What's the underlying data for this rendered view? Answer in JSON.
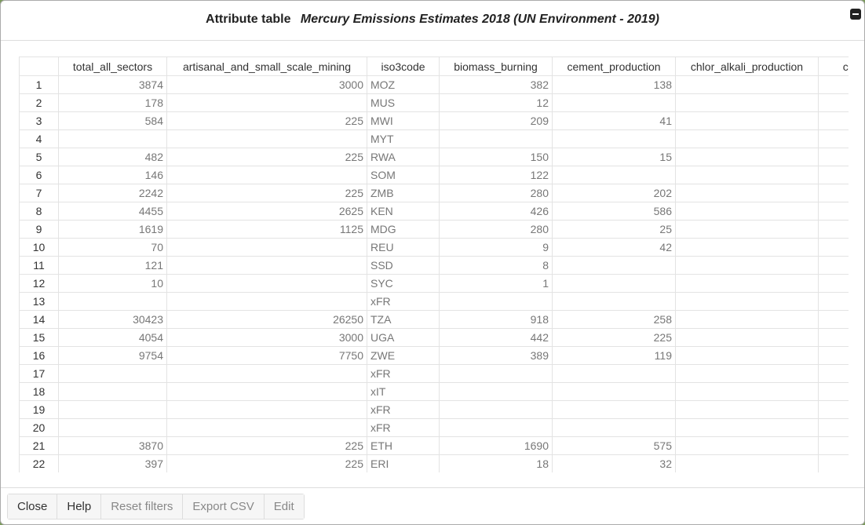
{
  "header": {
    "title": "Attribute table",
    "layer": "Mercury Emissions Estimates 2018 (UN Environment - 2019)"
  },
  "table": {
    "columns": [
      "total_all_sectors",
      "artisanal_and_small_scale_mining",
      "iso3code",
      "biomass_burning",
      "cement_production",
      "chlor_alkali_production",
      "cre"
    ],
    "rows": [
      [
        1,
        3874,
        3000,
        "MOZ",
        382,
        138,
        null,
        null
      ],
      [
        2,
        178,
        null,
        "MUS",
        12,
        null,
        null,
        null
      ],
      [
        3,
        584,
        225,
        "MWI",
        209,
        41,
        null,
        null
      ],
      [
        4,
        null,
        null,
        "MYT",
        null,
        null,
        null,
        null
      ],
      [
        5,
        482,
        225,
        "RWA",
        150,
        15,
        null,
        null
      ],
      [
        6,
        146,
        null,
        "SOM",
        122,
        null,
        null,
        null
      ],
      [
        7,
        2242,
        225,
        "ZMB",
        280,
        202,
        null,
        null
      ],
      [
        8,
        4455,
        2625,
        "KEN",
        426,
        586,
        null,
        null
      ],
      [
        9,
        1619,
        1125,
        "MDG",
        280,
        25,
        null,
        null
      ],
      [
        10,
        70,
        null,
        "REU",
        9,
        42,
        null,
        null
      ],
      [
        11,
        121,
        null,
        "SSD",
        8,
        null,
        null,
        null
      ],
      [
        12,
        10,
        null,
        "SYC",
        1,
        null,
        null,
        null
      ],
      [
        13,
        null,
        null,
        "xFR",
        null,
        null,
        null,
        null
      ],
      [
        14,
        30423,
        26250,
        "TZA",
        918,
        258,
        null,
        null
      ],
      [
        15,
        4054,
        3000,
        "UGA",
        442,
        225,
        null,
        null
      ],
      [
        16,
        9754,
        7750,
        "ZWE",
        389,
        119,
        null,
        null
      ],
      [
        17,
        null,
        null,
        "xFR",
        null,
        null,
        null,
        null
      ],
      [
        18,
        null,
        null,
        "xIT",
        null,
        null,
        null,
        null
      ],
      [
        19,
        null,
        null,
        "xFR",
        null,
        null,
        null,
        null
      ],
      [
        20,
        null,
        null,
        "xFR",
        null,
        null,
        null,
        null
      ],
      [
        21,
        3870,
        225,
        "ETH",
        1690,
        575,
        null,
        null
      ],
      [
        22,
        397,
        225,
        "ERI",
        18,
        32,
        null,
        null
      ]
    ]
  },
  "buttons": [
    "Close",
    "Help",
    "Reset filters",
    "Export CSV",
    "Edit"
  ]
}
